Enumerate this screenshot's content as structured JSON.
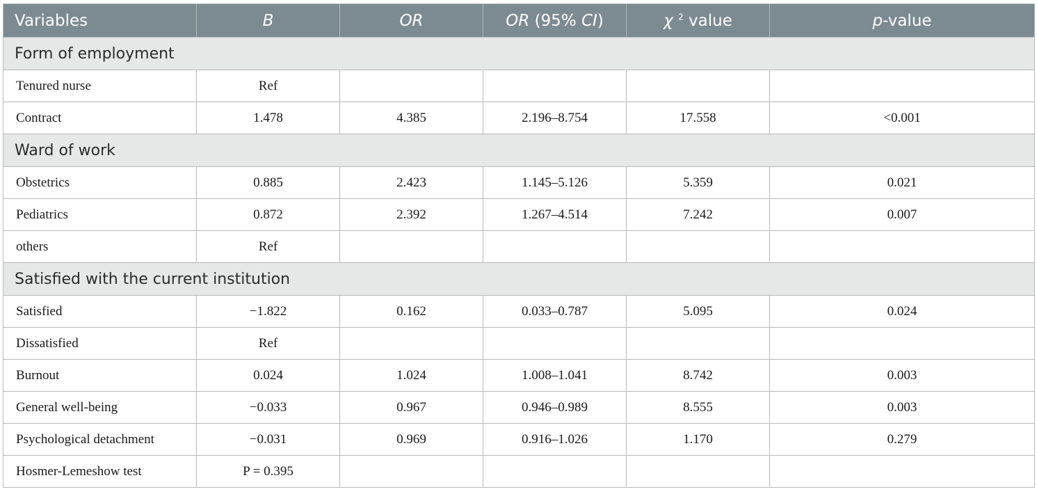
{
  "header": {
    "variables": "Variables",
    "b": "B",
    "or": "OR",
    "or_ci_1": "OR",
    "or_ci_2": " (95% ",
    "or_ci_3": "CI",
    "or_ci_4": ")",
    "chi_1": "χ ",
    "chi_sup": "2",
    "chi_2": " value",
    "p_1": "p",
    "p_2": "-value"
  },
  "sections": {
    "employment": "Form of employment",
    "ward": "Ward of work",
    "satisfied": "Satisfied with the current institution"
  },
  "rows": {
    "tenured": [
      "Tenured nurse",
      "Ref",
      "",
      "",
      "",
      ""
    ],
    "contract": [
      "Contract",
      "1.478",
      "4.385",
      "2.196–8.754",
      "17.558",
      "<0.001"
    ],
    "obstetrics": [
      "Obstetrics",
      "0.885",
      "2.423",
      "1.145–5.126",
      "5.359",
      "0.021"
    ],
    "pediatrics": [
      "Pediatrics",
      "0.872",
      "2.392",
      "1.267–4.514",
      "7.242",
      "0.007"
    ],
    "others": [
      "others",
      "Ref",
      "",
      "",
      "",
      ""
    ],
    "satisfied": [
      "Satisfied",
      "−1.822",
      "0.162",
      "0.033–0.787",
      "5.095",
      "0.024"
    ],
    "dissatisfied": [
      "Dissatisfied",
      "Ref",
      "",
      "",
      "",
      ""
    ],
    "burnout": [
      "Burnout",
      "0.024",
      "1.024",
      "1.008–1.041",
      "8.742",
      "0.003"
    ],
    "wellbeing": [
      "General well-being",
      "−0.033",
      "0.967",
      "0.946–0.989",
      "8.555",
      "0.003"
    ],
    "detachment": [
      "Psychological detachment",
      "−0.031",
      "0.969",
      "0.916–1.026",
      "1.170",
      "0.279"
    ],
    "hosmer": [
      "Hosmer-Lemeshow test",
      "P = 0.395",
      "",
      "",
      "",
      ""
    ]
  },
  "colors": {
    "header_bg": "#7c8a92",
    "section_bg": "#e6e7e7",
    "border": "#b8b8b8"
  }
}
